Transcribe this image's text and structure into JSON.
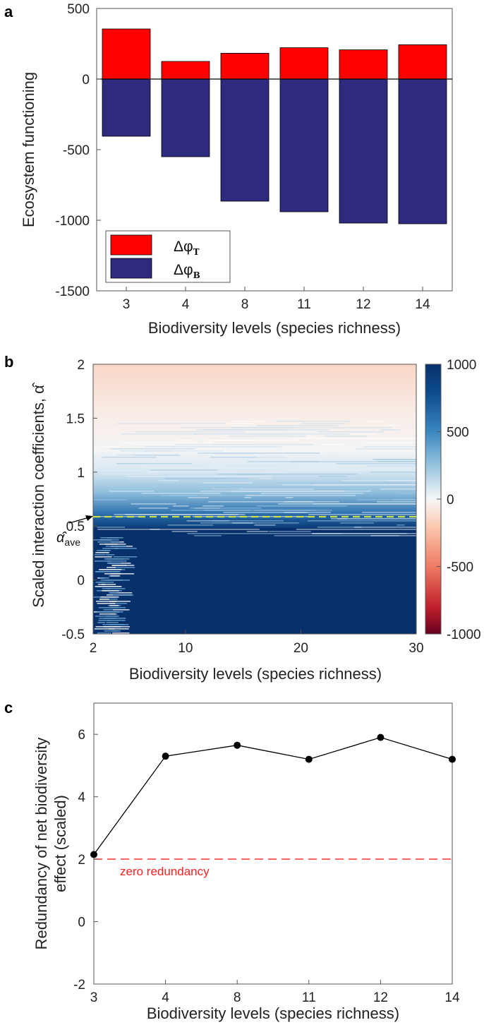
{
  "panel_letters": [
    "a",
    "b",
    "c"
  ],
  "colors": {
    "delta_T": "#ff0000",
    "delta_B": "#2e2a7e",
    "heat_pos": "#08306b",
    "heat_neg": "#67001f",
    "dashed_ref": "#c8e04a",
    "zero_line": "#ff3030",
    "line_c": "#000000"
  },
  "chart_data": [
    {
      "type": "bar",
      "panel": "a",
      "categories": [
        "3",
        "4",
        "8",
        "11",
        "12",
        "14"
      ],
      "series": [
        {
          "name": "Δφ_T",
          "legend_main": "Δφ",
          "legend_sub": "T",
          "values": [
            355,
            125,
            183,
            222,
            207,
            243
          ]
        },
        {
          "name": "Δφ_B",
          "legend_main": "Δφ",
          "legend_sub": "B",
          "values": [
            -405,
            -550,
            -865,
            -940,
            -1020,
            -1025
          ]
        }
      ],
      "xlabel": "Biodiversity levels (species richness)",
      "ylabel": "Ecosystem functioning",
      "ylim": [
        -1500,
        500
      ],
      "yticks": [
        500,
        0,
        -500,
        -1000,
        -1500
      ],
      "ytick_labels": [
        "500",
        "0",
        "-500",
        "-1000",
        "-1500"
      ],
      "legend_position": "bottom-left",
      "grid": false
    },
    {
      "type": "heatmap",
      "panel": "b",
      "xlabel": "Biodiversity levels (species richness)",
      "ylabel": "Scaled interaction coefficients, α̂",
      "xlim": [
        2,
        30
      ],
      "ylim": [
        -0.5,
        2
      ],
      "xticks": [
        2,
        10,
        20,
        30
      ],
      "xtick_labels": [
        "2",
        "10",
        "20",
        "30"
      ],
      "yticks": [
        2,
        1.5,
        1,
        0.5,
        0,
        -0.5
      ],
      "ytick_labels": [
        "2",
        "1.5",
        "1",
        "0.5",
        "0",
        "-0.5"
      ],
      "colorbar": {
        "range": [
          -1000,
          1000
        ],
        "ticks": [
          1000,
          500,
          0,
          -500,
          -1000
        ],
        "tick_labels": [
          "1000",
          "500",
          "0",
          "-500",
          "-1000"
        ]
      },
      "annotation": {
        "label_main": "α̂",
        "label_sub": "ave",
        "value": 0.38
      }
    },
    {
      "type": "line",
      "panel": "c",
      "categories": [
        "3",
        "4",
        "8",
        "11",
        "12",
        "14"
      ],
      "values": [
        2.15,
        5.3,
        5.65,
        5.2,
        5.9,
        5.2
      ],
      "xlabel": "Biodiversity levels (species richness)",
      "ylabel_lines": [
        "Redundancy of net biodiversity",
        "effect (scaled)"
      ],
      "ylim": [
        -2,
        7
      ],
      "yticks": [
        6,
        4,
        2,
        0,
        -2
      ],
      "ytick_labels": [
        "6",
        "4",
        "2",
        "0",
        "-2"
      ],
      "reference_line": {
        "value": 0,
        "label": "zero redundancy"
      },
      "grid": false
    }
  ]
}
